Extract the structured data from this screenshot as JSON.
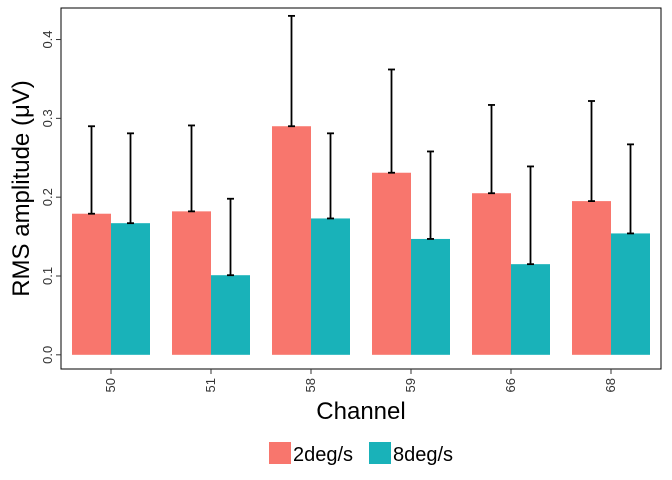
{
  "chart_data": {
    "type": "bar",
    "xlabel": "Channel",
    "ylabel": "RMS amplitude (μV)",
    "categories": [
      "50",
      "51",
      "58",
      "59",
      "66",
      "68"
    ],
    "ylim": [
      -0.018,
      0.44
    ],
    "yticks": [
      0.0,
      0.1,
      0.2,
      0.3,
      0.4
    ],
    "ytick_labels": [
      "0.0",
      "0.1",
      "0.2",
      "0.3",
      "0.4"
    ],
    "grid": false,
    "legend_position": "bottom",
    "series": [
      {
        "name": "2deg/s",
        "color": "#F8766D",
        "values": [
          0.179,
          0.182,
          0.29,
          0.231,
          0.205,
          0.195
        ],
        "error_upper": [
          0.29,
          0.291,
          0.43,
          0.362,
          0.317,
          0.322
        ]
      },
      {
        "name": "8deg/s",
        "color": "#19B2B9",
        "values": [
          0.167,
          0.101,
          0.173,
          0.147,
          0.115,
          0.154
        ],
        "error_upper": [
          0.281,
          0.198,
          0.281,
          0.258,
          0.239,
          0.267
        ]
      }
    ]
  }
}
